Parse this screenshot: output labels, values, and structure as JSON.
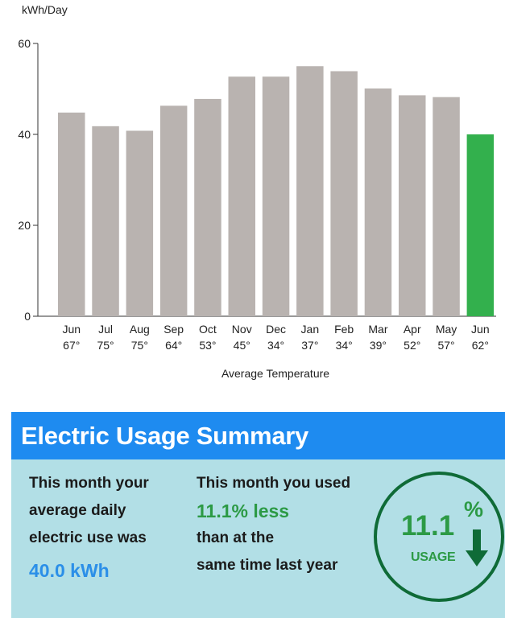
{
  "chart_data": {
    "type": "bar",
    "ylabel": "kWh/Day",
    "xlabel": "Average Temperature",
    "ylim": [
      0,
      60
    ],
    "yticks": [
      0,
      20,
      40,
      60
    ],
    "categories": [
      "Jun",
      "Jul",
      "Aug",
      "Sep",
      "Oct",
      "Nov",
      "Dec",
      "Jan",
      "Feb",
      "Mar",
      "Apr",
      "May",
      "Jun"
    ],
    "temperatures": [
      "67°",
      "75°",
      "75°",
      "64°",
      "53°",
      "45°",
      "34°",
      "37°",
      "34°",
      "39°",
      "52°",
      "57°",
      "62°"
    ],
    "values": [
      44.8,
      41.8,
      40.8,
      46.3,
      47.8,
      52.7,
      52.7,
      55.0,
      53.9,
      50.1,
      48.6,
      48.2,
      40.0
    ],
    "highlight_index": 12,
    "bar_color": "#b9b3b0",
    "highlight_color": "#33b04d",
    "grid": false
  },
  "summary": {
    "title": "Electric Usage Summary",
    "col1_lines": [
      "This month your",
      "average daily",
      "electric use was"
    ],
    "daily_use": "40.0 kWh",
    "col2_line1": "This month you used",
    "percent_less": "11.1% less",
    "col2_lines": [
      "than at the",
      "same time last year"
    ],
    "gauge_value": "11.1",
    "gauge_unit": "%",
    "gauge_label": "USAGE",
    "header_color": "#1e8bf0",
    "panel_color": "#b2dfe6"
  }
}
